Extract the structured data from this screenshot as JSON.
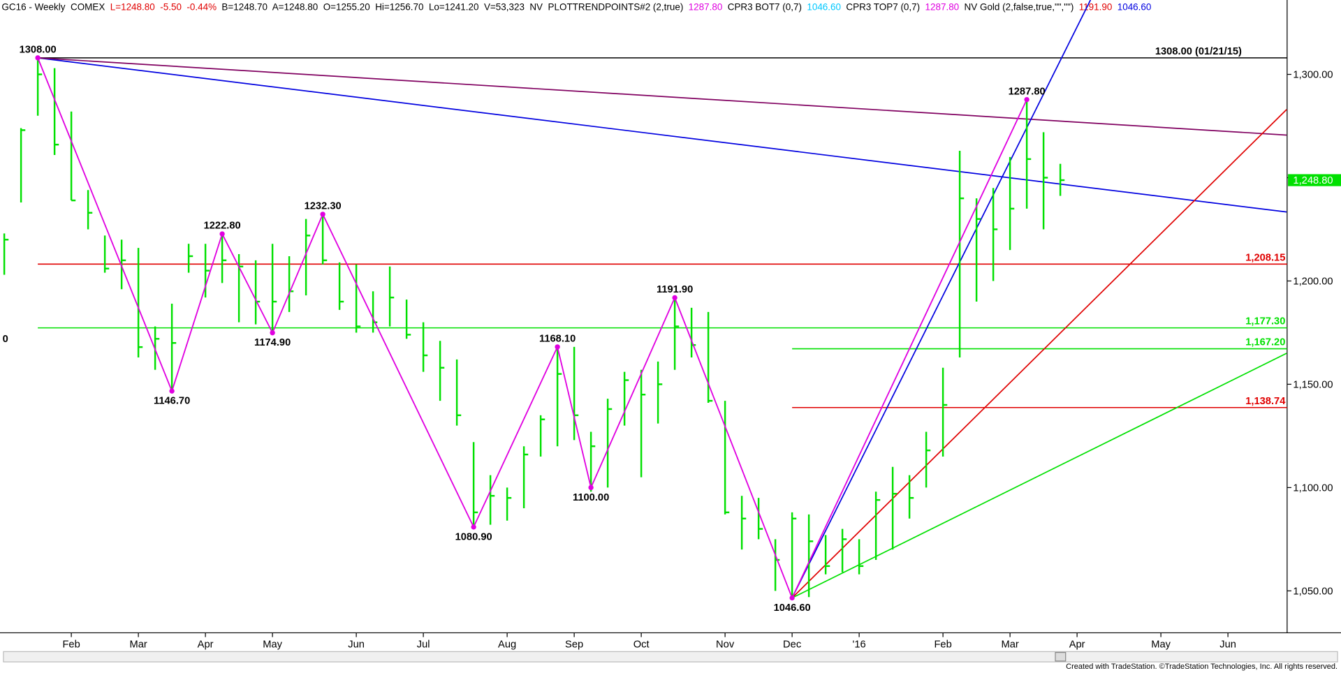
{
  "chart_data": {
    "type": "ohlc",
    "header": [
      {
        "text": "GC16 - Weekly  COMEX",
        "color": "#000000"
      },
      {
        "text": "L=1248.80  -5.50  -0.44%",
        "color": "#e00000"
      },
      {
        "text": "B=1248.70  A=1248.80  O=1255.20  Hi=1256.70  Lo=1241.20  V=53,323",
        "color": "#000000"
      },
      {
        "text": "NV  PLOTTRENDPOINTS#2 (2,true)",
        "color": "#000000"
      },
      {
        "text": "1287.80",
        "color": "#e000e0"
      },
      {
        "text": "CPR3 BOT7 (0,7)",
        "color": "#000000"
      },
      {
        "text": "1046.60",
        "color": "#00c8ff"
      },
      {
        "text": "CPR3 TOP7 (0,7)",
        "color": "#000000"
      },
      {
        "text": "1287.80",
        "color": "#e000e0"
      },
      {
        "text": "NV Gold (2,false,true,\"\",\"\")",
        "color": "#000000"
      },
      {
        "text": "1191.90",
        "color": "#e00000"
      },
      {
        "text": "1046.60",
        "color": "#0000e0"
      }
    ],
    "edge_label": "0",
    "footer": "Created with TradeStation. ©TradeStation Technologies, Inc. All rights reserved.",
    "categories": [
      null,
      null,
      null,
      null,
      "Feb",
      null,
      null,
      null,
      "Mar",
      null,
      null,
      null,
      "Apr",
      null,
      null,
      null,
      "May",
      null,
      null,
      null,
      null,
      "Jun",
      null,
      null,
      null,
      "Jul",
      null,
      null,
      null,
      null,
      "Aug",
      null,
      null,
      null,
      "Sep",
      null,
      null,
      null,
      "Oct",
      null,
      null,
      null,
      null,
      "Nov",
      null,
      null,
      null,
      "Dec",
      null,
      null,
      null,
      "'16",
      null,
      null,
      null,
      null,
      "Feb",
      null,
      null,
      null,
      "Mar",
      null,
      null,
      null,
      "Apr",
      null,
      null,
      null,
      null,
      "May",
      null,
      null,
      null,
      "Jun",
      null,
      null,
      null
    ],
    "high": [
      1223,
      1274,
      1308,
      1303,
      1282,
      1244,
      1222,
      1220,
      1216,
      1178,
      1189,
      1218,
      1218,
      1222.8,
      1213,
      1210,
      1218,
      1212,
      1230,
      1232.3,
      1209,
      1208,
      1195,
      1207,
      1191,
      1180,
      1171,
      1162,
      1122,
      1106,
      1100,
      1120,
      1135,
      1168,
      1168.1,
      1127,
      1143,
      1156,
      1157,
      1161,
      1191.9,
      1187,
      1185,
      1142,
      1096,
      1095,
      1075,
      1088,
      1087,
      1077,
      1080,
      1075,
      1098,
      1110,
      1106,
      1127,
      1158,
      1263,
      1240,
      1245,
      1260,
      1287.8,
      1272,
      1256.7,
      null,
      null,
      null,
      null,
      null,
      null,
      null,
      null,
      null,
      null,
      null,
      null,
      null
    ],
    "low": [
      1203,
      1238,
      1280,
      1261,
      1239,
      1225,
      1204,
      1196,
      1163,
      1157,
      1147,
      1204,
      1192,
      1199,
      1180,
      1179,
      1175,
      1185,
      1193,
      1208,
      1186,
      1175,
      1175,
      1178,
      1172,
      1156,
      1142,
      1130,
      1081,
      1082,
      1084,
      1090,
      1115,
      1120,
      1123,
      1098,
      1100,
      1130,
      1105,
      1131,
      1157,
      1163,
      1141,
      1087,
      1070,
      1075,
      1050,
      1046.6,
      1047,
      1058,
      1059,
      1058,
      1065,
      1070,
      1085,
      1100,
      1115,
      1163,
      1190,
      1200,
      1215,
      1235,
      1225,
      1241.2,
      null,
      null,
      null,
      null,
      null,
      null,
      null,
      null,
      null,
      null,
      null,
      null,
      null
    ],
    "close": [
      1220,
      1273,
      1300,
      1266,
      1239,
      1233,
      1206,
      1210,
      1168,
      1172,
      1170,
      1212,
      1205,
      1210,
      1207,
      1190,
      1190,
      1195,
      1222,
      1210,
      1190,
      1178,
      1180,
      1192,
      1174,
      1164,
      1158,
      1135,
      1088,
      1096,
      1095,
      1116,
      1133,
      1155,
      1135,
      1120,
      1138,
      1152,
      1145,
      1150,
      1178,
      1169,
      1142,
      1088,
      1085,
      1080,
      1065,
      1085,
      1074,
      1062,
      1075,
      1062,
      1094,
      1097,
      1095,
      1118,
      1140,
      1240,
      1230,
      1225,
      1235,
      1259,
      1250,
      1248.8,
      null,
      null,
      null,
      null,
      null,
      null,
      null,
      null,
      null,
      null,
      null,
      null,
      null
    ],
    "bar_color": "#00e000",
    "pivots": {
      "color": "#e000e0",
      "x": [
        2,
        10,
        13,
        16,
        19,
        28,
        33,
        35,
        40,
        47,
        61
      ],
      "values": [
        1308,
        1146.7,
        1222.8,
        1174.9,
        1232.3,
        1080.9,
        1168.1,
        1100,
        1191.9,
        1046.6,
        1287.8
      ],
      "value_labels": [
        "1308.00",
        "1146.70",
        "1222.80",
        "1174.90",
        "1232.30",
        "1080.90",
        "1168.10",
        "1100.00",
        "1191.90",
        "1046.60",
        "1287.80"
      ]
    },
    "levels": [
      {
        "value": 1308,
        "label": "1308.00 (01/21/15)",
        "color": "#000000",
        "from": 2
      },
      {
        "value": 1208.15,
        "label": "1,208.15",
        "color": "#e00000",
        "from": 2
      },
      {
        "value": 1177.3,
        "label": "1,177.30",
        "color": "#00e000",
        "from": 2
      },
      {
        "value": 1167.2,
        "label": "1,167.20",
        "color": "#00e000",
        "from": 47
      },
      {
        "value": 1138.74,
        "label": "1,138.74",
        "color": "#e00000",
        "from": 47
      }
    ],
    "trendlines": [
      {
        "color": "#0000e0",
        "x": [
          2,
          76.5
        ],
        "values": [
          1308,
          1233.4
        ]
      },
      {
        "color": "#800060",
        "x": [
          2,
          76.5
        ],
        "values": [
          1308,
          1270.6
        ]
      },
      {
        "color": "#0000e0",
        "x": [
          47,
          64.8
        ],
        "values": [
          1046.6,
          1336
        ]
      },
      {
        "color": "#e00000",
        "x": [
          47,
          76.5
        ],
        "values": [
          1046.6,
          1283
        ]
      },
      {
        "color": "#00e000",
        "x": [
          47,
          76.5
        ],
        "values": [
          1046.6,
          1165
        ]
      }
    ],
    "last_price": {
      "value": 1248.8,
      "label": "1,248.80",
      "color": "#00e000"
    },
    "ylim": [
      1029.7,
      1336
    ],
    "yticks": [
      {
        "value": 1050,
        "label": "1,050.00"
      },
      {
        "value": 1100,
        "label": "1,100.00"
      },
      {
        "value": 1150,
        "label": "1,150.00"
      },
      {
        "value": 1200,
        "label": "1,200.00"
      },
      {
        "value": 1250,
        "label": "1,250.00"
      },
      {
        "value": 1300,
        "label": "1,300.00"
      }
    ]
  }
}
